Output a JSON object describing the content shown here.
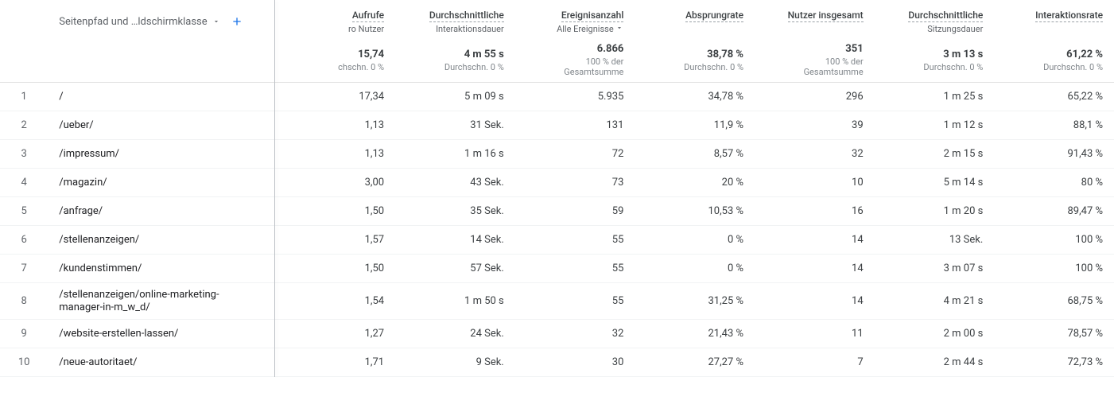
{
  "header": {
    "dimension_label": "Seitenpfad und …ldschirmklasse",
    "columns": [
      {
        "title": "Aufrufe",
        "sub": "ro Nutzer"
      },
      {
        "title": "Durchschnittliche",
        "sub": "Interaktionsdauer"
      },
      {
        "title": "Ereignisanzahl",
        "sub": "Alle Ereignisse",
        "dropdown": true
      },
      {
        "title": "Absprungrate",
        "sub": ""
      },
      {
        "title": "Nutzer insgesamt",
        "sub": ""
      },
      {
        "title": "Durchschnittliche",
        "sub": "Sitzungsdauer"
      },
      {
        "title": "Interaktionsrate",
        "sub": ""
      }
    ]
  },
  "summary": {
    "values": [
      "15,74",
      "4 m 55 s",
      "6.866",
      "38,78 %",
      "351",
      "3 m 13 s",
      "61,22 %"
    ],
    "compare": [
      "chschn. 0 %",
      "Durchschn. 0 %",
      "100 % der Gesamtsumme",
      "Durchschn. 0 %",
      "100 % der Gesamtsumme",
      "Durchschn. 0 %",
      "Durchschn. 0 %"
    ]
  },
  "rows": [
    {
      "idx": "1",
      "path": "/",
      "m": [
        "17,34",
        "5 m 09 s",
        "5.935",
        "34,78 %",
        "296",
        "1 m 25 s",
        "65,22 %"
      ]
    },
    {
      "idx": "2",
      "path": "/ueber/",
      "m": [
        "1,13",
        "31 Sek.",
        "131",
        "11,9 %",
        "39",
        "1 m 12 s",
        "88,1 %"
      ]
    },
    {
      "idx": "3",
      "path": "/impressum/",
      "m": [
        "1,13",
        "1 m 16 s",
        "72",
        "8,57 %",
        "32",
        "2 m 15 s",
        "91,43 %"
      ]
    },
    {
      "idx": "4",
      "path": "/magazin/",
      "m": [
        "3,00",
        "43 Sek.",
        "73",
        "20 %",
        "10",
        "5 m 14 s",
        "80 %"
      ]
    },
    {
      "idx": "5",
      "path": "/anfrage/",
      "m": [
        "1,50",
        "35 Sek.",
        "59",
        "10,53 %",
        "16",
        "1 m 20 s",
        "89,47 %"
      ]
    },
    {
      "idx": "6",
      "path": "/stellenanzeigen/",
      "m": [
        "1,57",
        "14 Sek.",
        "55",
        "0 %",
        "14",
        "13 Sek.",
        "100 %"
      ]
    },
    {
      "idx": "7",
      "path": "/kundenstimmen/",
      "m": [
        "1,50",
        "57 Sek.",
        "55",
        "0 %",
        "14",
        "3 m 07 s",
        "100 %"
      ]
    },
    {
      "idx": "8",
      "path": "/stellenanzeigen/online-marketing-manager-in-m_w_d/",
      "tall": true,
      "m": [
        "1,54",
        "1 m 50 s",
        "55",
        "31,25 %",
        "14",
        "4 m 21 s",
        "68,75 %"
      ]
    },
    {
      "idx": "9",
      "path": "/website-erstellen-lassen/",
      "m": [
        "1,27",
        "24 Sek.",
        "32",
        "21,43 %",
        "11",
        "2 m 00 s",
        "78,57 %"
      ]
    },
    {
      "idx": "10",
      "path": "/neue-autoritaet/",
      "m": [
        "1,71",
        "9 Sek.",
        "30",
        "27,27 %",
        "7",
        "2 m 44 s",
        "72,73 %"
      ]
    }
  ]
}
